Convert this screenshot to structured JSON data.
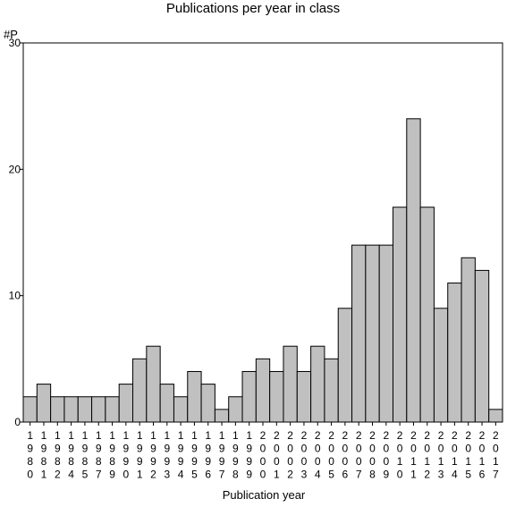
{
  "chart_data": {
    "type": "bar",
    "title": "Publications per year in class",
    "xlabel": "Publication year",
    "ylabel": "#P",
    "ylim": [
      0,
      30
    ],
    "yticks": [
      0,
      10,
      20,
      30
    ],
    "grid": false,
    "legend": "none",
    "colors": {
      "bar_fill": "#c0c0c0",
      "bar_stroke": "#000000",
      "frame": "#000000"
    },
    "categories": [
      "1980",
      "1981",
      "1982",
      "1984",
      "1985",
      "1987",
      "1989",
      "1990",
      "1991",
      "1992",
      "1993",
      "1994",
      "1995",
      "1996",
      "1997",
      "1998",
      "1999",
      "2000",
      "2001",
      "2002",
      "2003",
      "2004",
      "2005",
      "2006",
      "2007",
      "2008",
      "2009",
      "2010",
      "2011",
      "2012",
      "2013",
      "2014",
      "2015",
      "2016",
      "2017"
    ],
    "values": [
      2,
      3,
      2,
      2,
      2,
      2,
      2,
      3,
      5,
      6,
      3,
      2,
      4,
      3,
      1,
      2,
      4,
      5,
      4,
      6,
      4,
      6,
      5,
      9,
      14,
      14,
      14,
      17,
      24,
      17,
      9,
      11,
      13,
      12,
      1
    ]
  }
}
